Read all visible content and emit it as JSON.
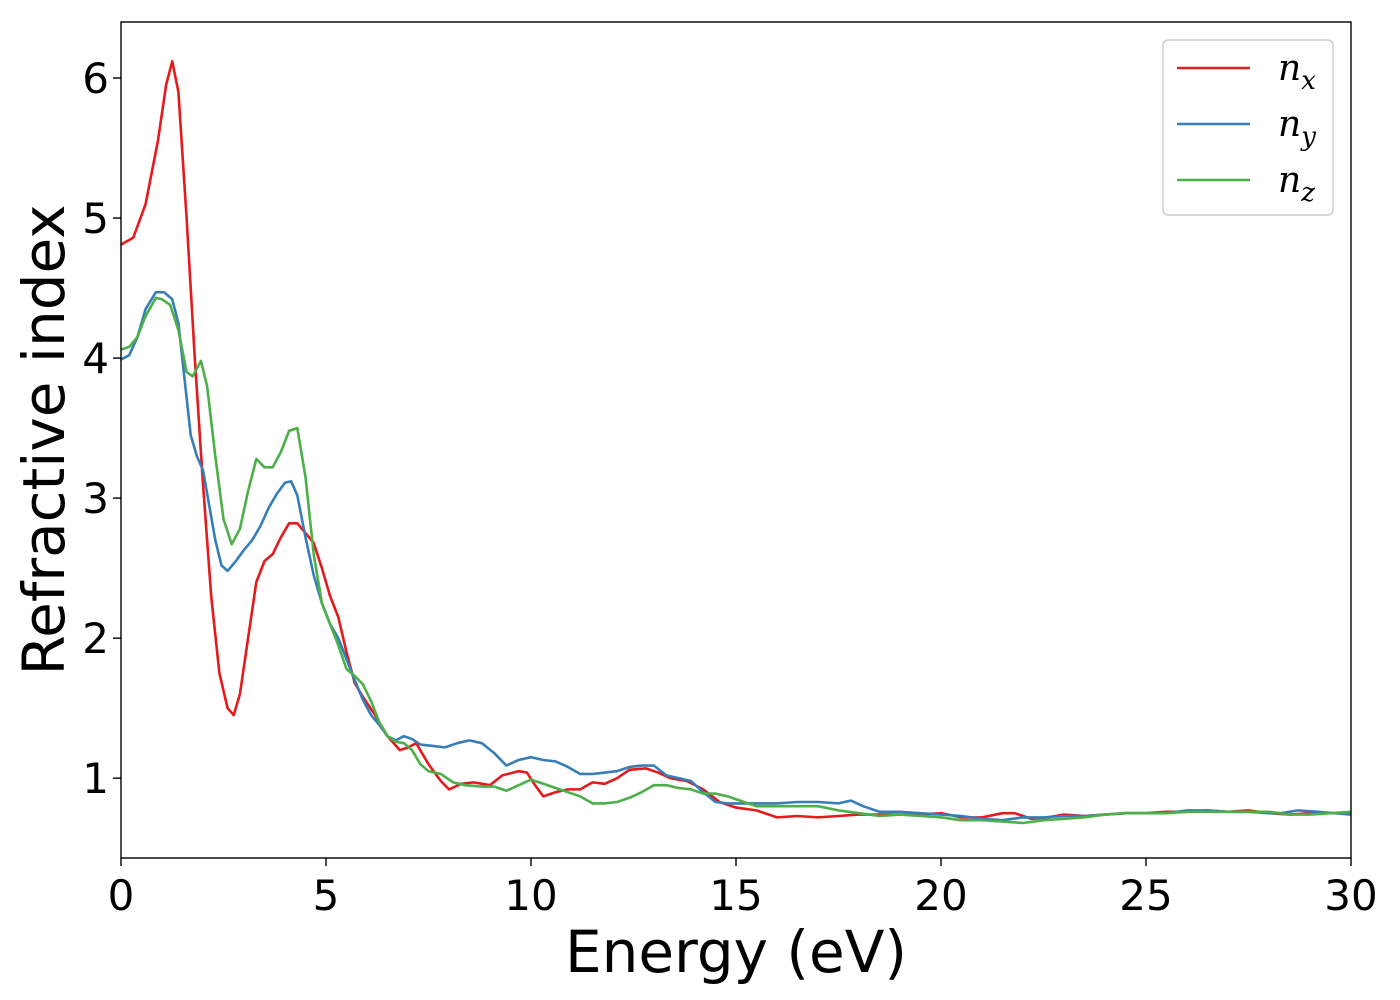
{
  "chart_data": {
    "type": "line",
    "title": "",
    "xlabel": "Energy (eV)",
    "ylabel": "Refractive index",
    "xlim": [
      0,
      30
    ],
    "ylim": [
      0.43,
      6.4
    ],
    "xticks": [
      0,
      5,
      10,
      15,
      20,
      25,
      30
    ],
    "xtick_labels": [
      "0",
      "5",
      "10",
      "15",
      "20",
      "25",
      "30"
    ],
    "yticks": [
      1,
      2,
      3,
      4,
      5,
      6
    ],
    "ytick_labels": [
      "1",
      "2",
      "3",
      "4",
      "5",
      "6"
    ],
    "grid": false,
    "legend_position": "top-right",
    "series": [
      {
        "name": "n",
        "subscript": "x",
        "color": "#e41a1c",
        "points": [
          [
            0,
            4.81
          ],
          [
            0.3,
            4.86
          ],
          [
            0.6,
            5.1
          ],
          [
            0.9,
            5.55
          ],
          [
            1.1,
            5.95
          ],
          [
            1.25,
            6.12
          ],
          [
            1.4,
            5.9
          ],
          [
            1.6,
            5.0
          ],
          [
            1.8,
            4.0
          ],
          [
            2.0,
            3.1
          ],
          [
            2.2,
            2.3
          ],
          [
            2.4,
            1.75
          ],
          [
            2.6,
            1.5
          ],
          [
            2.75,
            1.45
          ],
          [
            2.9,
            1.6
          ],
          [
            3.1,
            2.0
          ],
          [
            3.3,
            2.4
          ],
          [
            3.5,
            2.55
          ],
          [
            3.7,
            2.6
          ],
          [
            3.9,
            2.72
          ],
          [
            4.1,
            2.82
          ],
          [
            4.3,
            2.82
          ],
          [
            4.5,
            2.75
          ],
          [
            4.7,
            2.68
          ],
          [
            4.9,
            2.5
          ],
          [
            5.1,
            2.3
          ],
          [
            5.3,
            2.15
          ],
          [
            5.5,
            1.9
          ],
          [
            5.7,
            1.68
          ],
          [
            5.9,
            1.58
          ],
          [
            6.2,
            1.45
          ],
          [
            6.5,
            1.3
          ],
          [
            6.8,
            1.2
          ],
          [
            7.0,
            1.22
          ],
          [
            7.2,
            1.25
          ],
          [
            7.5,
            1.1
          ],
          [
            7.8,
            0.98
          ],
          [
            8.0,
            0.92
          ],
          [
            8.3,
            0.96
          ],
          [
            8.6,
            0.97
          ],
          [
            9.0,
            0.95
          ],
          [
            9.3,
            1.02
          ],
          [
            9.7,
            1.05
          ],
          [
            9.9,
            1.04
          ],
          [
            10.1,
            0.95
          ],
          [
            10.3,
            0.87
          ],
          [
            10.6,
            0.9
          ],
          [
            10.9,
            0.92
          ],
          [
            11.2,
            0.92
          ],
          [
            11.5,
            0.97
          ],
          [
            11.8,
            0.96
          ],
          [
            12.1,
            1.0
          ],
          [
            12.4,
            1.06
          ],
          [
            12.8,
            1.07
          ],
          [
            13.1,
            1.04
          ],
          [
            13.4,
            1.0
          ],
          [
            13.8,
            0.98
          ],
          [
            14.2,
            0.92
          ],
          [
            14.6,
            0.83
          ],
          [
            15.0,
            0.79
          ],
          [
            15.5,
            0.77
          ],
          [
            16.0,
            0.72
          ],
          [
            16.5,
            0.73
          ],
          [
            17.0,
            0.72
          ],
          [
            17.5,
            0.73
          ],
          [
            18.0,
            0.74
          ],
          [
            18.5,
            0.74
          ],
          [
            19.0,
            0.74
          ],
          [
            19.5,
            0.74
          ],
          [
            20.0,
            0.75
          ],
          [
            20.5,
            0.72
          ],
          [
            21.0,
            0.72
          ],
          [
            21.5,
            0.75
          ],
          [
            21.8,
            0.75
          ],
          [
            22.2,
            0.71
          ],
          [
            22.6,
            0.72
          ],
          [
            23.0,
            0.74
          ],
          [
            23.5,
            0.73
          ],
          [
            24.0,
            0.74
          ],
          [
            24.5,
            0.75
          ],
          [
            25.0,
            0.75
          ],
          [
            25.5,
            0.76
          ],
          [
            26.0,
            0.76
          ],
          [
            26.5,
            0.77
          ],
          [
            27.0,
            0.76
          ],
          [
            27.5,
            0.77
          ],
          [
            28.0,
            0.75
          ],
          [
            28.5,
            0.74
          ],
          [
            29.0,
            0.75
          ],
          [
            29.5,
            0.75
          ],
          [
            30.0,
            0.75
          ]
        ]
      },
      {
        "name": "n",
        "subscript": "y",
        "color": "#377eb8",
        "points": [
          [
            0,
            3.99
          ],
          [
            0.2,
            4.02
          ],
          [
            0.4,
            4.15
          ],
          [
            0.6,
            4.35
          ],
          [
            0.85,
            4.47
          ],
          [
            1.05,
            4.47
          ],
          [
            1.25,
            4.42
          ],
          [
            1.4,
            4.25
          ],
          [
            1.55,
            3.85
          ],
          [
            1.7,
            3.45
          ],
          [
            1.85,
            3.3
          ],
          [
            2.0,
            3.2
          ],
          [
            2.15,
            2.95
          ],
          [
            2.3,
            2.7
          ],
          [
            2.45,
            2.52
          ],
          [
            2.6,
            2.48
          ],
          [
            2.8,
            2.55
          ],
          [
            3.0,
            2.63
          ],
          [
            3.2,
            2.7
          ],
          [
            3.4,
            2.8
          ],
          [
            3.6,
            2.93
          ],
          [
            3.8,
            3.03
          ],
          [
            4.0,
            3.11
          ],
          [
            4.15,
            3.12
          ],
          [
            4.3,
            3.02
          ],
          [
            4.5,
            2.72
          ],
          [
            4.7,
            2.45
          ],
          [
            4.9,
            2.25
          ],
          [
            5.1,
            2.1
          ],
          [
            5.3,
            2.0
          ],
          [
            5.5,
            1.85
          ],
          [
            5.7,
            1.7
          ],
          [
            5.9,
            1.56
          ],
          [
            6.1,
            1.45
          ],
          [
            6.3,
            1.38
          ],
          [
            6.5,
            1.3
          ],
          [
            6.7,
            1.27
          ],
          [
            6.9,
            1.3
          ],
          [
            7.1,
            1.28
          ],
          [
            7.3,
            1.24
          ],
          [
            7.6,
            1.23
          ],
          [
            7.9,
            1.22
          ],
          [
            8.2,
            1.25
          ],
          [
            8.5,
            1.27
          ],
          [
            8.8,
            1.25
          ],
          [
            9.1,
            1.18
          ],
          [
            9.4,
            1.09
          ],
          [
            9.7,
            1.13
          ],
          [
            10.0,
            1.15
          ],
          [
            10.3,
            1.13
          ],
          [
            10.6,
            1.12
          ],
          [
            10.9,
            1.08
          ],
          [
            11.2,
            1.03
          ],
          [
            11.5,
            1.03
          ],
          [
            11.8,
            1.04
          ],
          [
            12.1,
            1.05
          ],
          [
            12.4,
            1.08
          ],
          [
            12.7,
            1.09
          ],
          [
            13.0,
            1.09
          ],
          [
            13.3,
            1.02
          ],
          [
            13.6,
            1.0
          ],
          [
            13.9,
            0.98
          ],
          [
            14.2,
            0.9
          ],
          [
            14.5,
            0.83
          ],
          [
            14.8,
            0.82
          ],
          [
            15.1,
            0.82
          ],
          [
            15.5,
            0.82
          ],
          [
            16.0,
            0.82
          ],
          [
            16.5,
            0.83
          ],
          [
            17.0,
            0.83
          ],
          [
            17.5,
            0.82
          ],
          [
            17.8,
            0.84
          ],
          [
            18.1,
            0.8
          ],
          [
            18.5,
            0.76
          ],
          [
            19.0,
            0.76
          ],
          [
            19.5,
            0.75
          ],
          [
            20.0,
            0.74
          ],
          [
            20.5,
            0.73
          ],
          [
            21.0,
            0.71
          ],
          [
            21.5,
            0.7
          ],
          [
            22.0,
            0.72
          ],
          [
            22.5,
            0.72
          ],
          [
            23.0,
            0.73
          ],
          [
            23.5,
            0.73
          ],
          [
            24.0,
            0.74
          ],
          [
            24.5,
            0.75
          ],
          [
            25.0,
            0.75
          ],
          [
            25.5,
            0.75
          ],
          [
            26.0,
            0.77
          ],
          [
            26.5,
            0.77
          ],
          [
            27.0,
            0.76
          ],
          [
            27.5,
            0.76
          ],
          [
            28.0,
            0.75
          ],
          [
            28.3,
            0.75
          ],
          [
            28.7,
            0.77
          ],
          [
            29.2,
            0.76
          ],
          [
            29.6,
            0.75
          ],
          [
            30.0,
            0.74
          ]
        ]
      },
      {
        "name": "n",
        "subscript": "z",
        "color": "#4daf4a",
        "points": [
          [
            0,
            4.06
          ],
          [
            0.2,
            4.08
          ],
          [
            0.4,
            4.15
          ],
          [
            0.6,
            4.3
          ],
          [
            0.85,
            4.43
          ],
          [
            1.0,
            4.42
          ],
          [
            1.2,
            4.38
          ],
          [
            1.4,
            4.2
          ],
          [
            1.6,
            3.9
          ],
          [
            1.75,
            3.87
          ],
          [
            1.95,
            3.98
          ],
          [
            2.1,
            3.8
          ],
          [
            2.3,
            3.3
          ],
          [
            2.5,
            2.85
          ],
          [
            2.7,
            2.67
          ],
          [
            2.9,
            2.78
          ],
          [
            3.1,
            3.05
          ],
          [
            3.3,
            3.28
          ],
          [
            3.5,
            3.22
          ],
          [
            3.7,
            3.22
          ],
          [
            3.9,
            3.33
          ],
          [
            4.1,
            3.48
          ],
          [
            4.3,
            3.5
          ],
          [
            4.5,
            3.15
          ],
          [
            4.7,
            2.6
          ],
          [
            4.9,
            2.25
          ],
          [
            5.1,
            2.1
          ],
          [
            5.3,
            1.95
          ],
          [
            5.5,
            1.78
          ],
          [
            5.7,
            1.73
          ],
          [
            5.9,
            1.67
          ],
          [
            6.1,
            1.55
          ],
          [
            6.3,
            1.4
          ],
          [
            6.5,
            1.3
          ],
          [
            6.7,
            1.26
          ],
          [
            6.9,
            1.25
          ],
          [
            7.1,
            1.2
          ],
          [
            7.3,
            1.1
          ],
          [
            7.5,
            1.05
          ],
          [
            7.8,
            1.03
          ],
          [
            8.1,
            0.97
          ],
          [
            8.4,
            0.95
          ],
          [
            8.8,
            0.94
          ],
          [
            9.1,
            0.94
          ],
          [
            9.4,
            0.91
          ],
          [
            9.7,
            0.95
          ],
          [
            10.0,
            0.99
          ],
          [
            10.3,
            0.96
          ],
          [
            10.6,
            0.93
          ],
          [
            10.9,
            0.9
          ],
          [
            11.2,
            0.87
          ],
          [
            11.5,
            0.82
          ],
          [
            11.8,
            0.82
          ],
          [
            12.1,
            0.83
          ],
          [
            12.4,
            0.86
          ],
          [
            12.7,
            0.9
          ],
          [
            13.0,
            0.95
          ],
          [
            13.3,
            0.95
          ],
          [
            13.6,
            0.93
          ],
          [
            13.9,
            0.92
          ],
          [
            14.2,
            0.89
          ],
          [
            14.5,
            0.89
          ],
          [
            14.8,
            0.87
          ],
          [
            15.1,
            0.84
          ],
          [
            15.5,
            0.8
          ],
          [
            16.0,
            0.8
          ],
          [
            16.5,
            0.8
          ],
          [
            17.0,
            0.8
          ],
          [
            17.5,
            0.77
          ],
          [
            18.0,
            0.75
          ],
          [
            18.5,
            0.73
          ],
          [
            19.0,
            0.74
          ],
          [
            19.5,
            0.73
          ],
          [
            20.0,
            0.72
          ],
          [
            20.5,
            0.7
          ],
          [
            21.0,
            0.7
          ],
          [
            21.5,
            0.69
          ],
          [
            22.0,
            0.68
          ],
          [
            22.5,
            0.7
          ],
          [
            23.0,
            0.71
          ],
          [
            23.5,
            0.72
          ],
          [
            24.0,
            0.74
          ],
          [
            24.5,
            0.75
          ],
          [
            25.0,
            0.75
          ],
          [
            25.5,
            0.75
          ],
          [
            26.0,
            0.76
          ],
          [
            26.5,
            0.76
          ],
          [
            27.0,
            0.76
          ],
          [
            27.5,
            0.76
          ],
          [
            28.0,
            0.76
          ],
          [
            28.5,
            0.74
          ],
          [
            29.0,
            0.74
          ],
          [
            29.5,
            0.75
          ],
          [
            30.0,
            0.76
          ]
        ]
      }
    ]
  }
}
